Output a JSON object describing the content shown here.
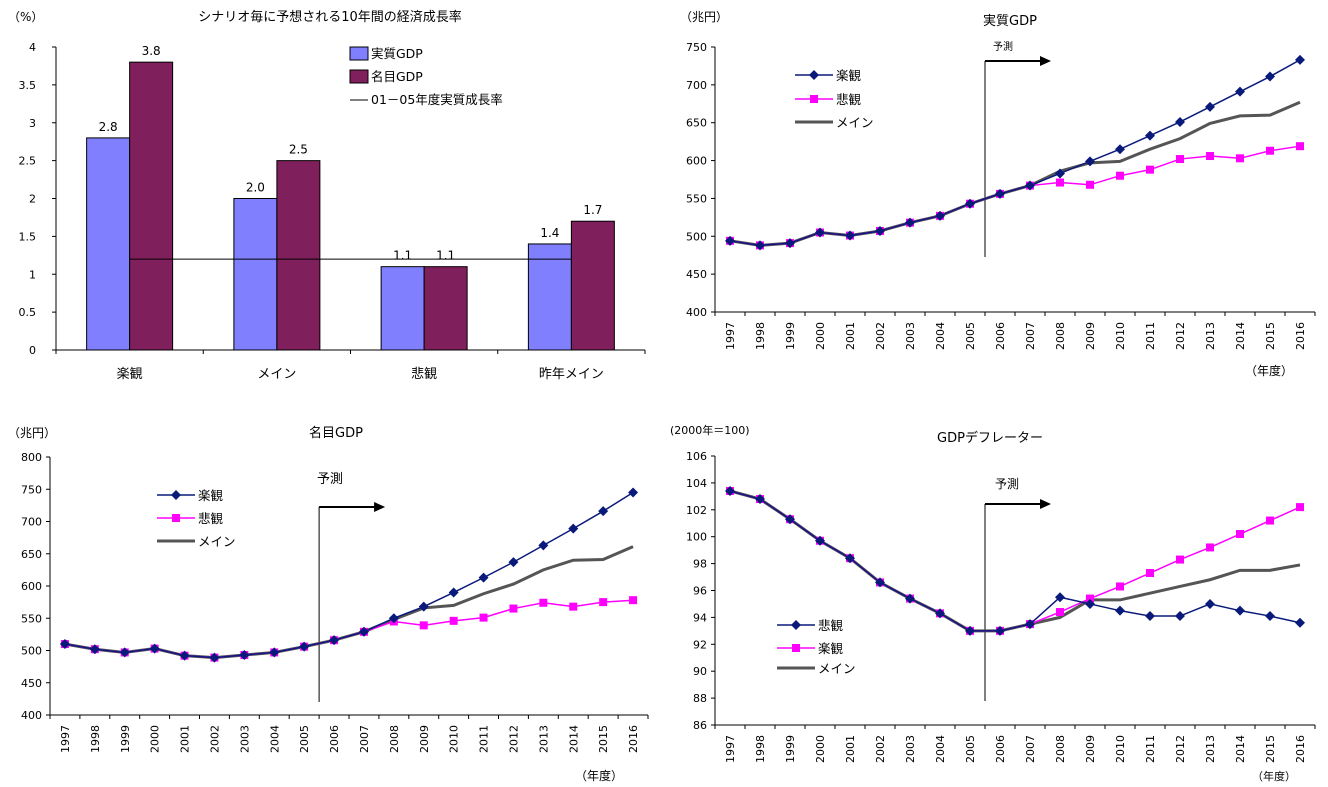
{
  "chart_data": [
    {
      "id": "growth",
      "type": "bar",
      "title": "シナリオ毎に予想される10年間の経済成長率",
      "unit_label": "（%）",
      "categories": [
        "楽観",
        "メイン",
        "悲観",
        "昨年メイン"
      ],
      "ylim": [
        0,
        4
      ],
      "yticks": [
        "0",
        "0.5",
        "1",
        "1.5",
        "2",
        "2.5",
        "3",
        "3.5",
        "4"
      ],
      "series": [
        {
          "name": "実質GDP",
          "values": [
            2.8,
            2.0,
            1.1,
            1.4
          ],
          "labels": [
            "2.8",
            "2.0",
            "1.1",
            "1.4"
          ],
          "color": "#8080ff"
        },
        {
          "name": "名目GDP",
          "values": [
            3.8,
            2.5,
            1.1,
            1.7
          ],
          "labels": [
            "3.8",
            "2.5",
            "1.1",
            "1.7"
          ],
          "color": "#7f1f5b"
        }
      ],
      "reference_line": {
        "name": "01－05年度実質成長率",
        "value": 1.2
      },
      "grid": false,
      "legend": "top-right"
    },
    {
      "id": "real",
      "type": "line",
      "title": "実質GDP",
      "unit_label": "（兆円）",
      "xlabel": "（年度）",
      "x": [
        "1997",
        "1998",
        "1999",
        "2000",
        "2001",
        "2002",
        "2003",
        "2004",
        "2005",
        "2006",
        "2007",
        "2008",
        "2009",
        "2010",
        "2011",
        "2012",
        "2013",
        "2014",
        "2015",
        "2016"
      ],
      "ylim": [
        400,
        750
      ],
      "yticks": [
        "400",
        "450",
        "500",
        "550",
        "600",
        "650",
        "700",
        "750"
      ],
      "forecast_start": "2006",
      "forecast_label": "予測",
      "series": [
        {
          "name": "楽観",
          "marker": "diamond",
          "color": "#0a1a7a",
          "values": [
            494,
            488,
            491,
            505,
            501,
            507,
            518,
            527,
            543,
            556,
            567,
            583,
            599,
            615,
            633,
            651,
            671,
            691,
            711,
            733
          ]
        },
        {
          "name": "悲観",
          "marker": "square",
          "color": "#ff00ff",
          "values": [
            494,
            488,
            491,
            505,
            501,
            507,
            518,
            527,
            543,
            556,
            567,
            571,
            568,
            580,
            588,
            602,
            606,
            603,
            613,
            619
          ]
        },
        {
          "name": "メイン",
          "marker": "none",
          "color": "#555555",
          "values": [
            494,
            488,
            491,
            505,
            501,
            507,
            518,
            527,
            543,
            556,
            567,
            586,
            597,
            599,
            615,
            629,
            649,
            659,
            660,
            677
          ]
        }
      ],
      "grid": false,
      "legend": "top-left"
    },
    {
      "id": "nominal",
      "type": "line",
      "title": "名目GDP",
      "unit_label": "（兆円）",
      "xlabel": "（年度）",
      "x": [
        "1997",
        "1998",
        "1999",
        "2000",
        "2001",
        "2002",
        "2003",
        "2004",
        "2005",
        "2006",
        "2007",
        "2008",
        "2009",
        "2010",
        "2011",
        "2012",
        "2013",
        "2014",
        "2015",
        "2016"
      ],
      "ylim": [
        400,
        800
      ],
      "yticks": [
        "400",
        "450",
        "500",
        "550",
        "600",
        "650",
        "700",
        "750",
        "800"
      ],
      "forecast_start": "2006",
      "forecast_label": "予測",
      "series": [
        {
          "name": "楽観",
          "marker": "diamond",
          "color": "#0a1a7a",
          "values": [
            510,
            502,
            497,
            503,
            492,
            489,
            493,
            497,
            506,
            516,
            529,
            550,
            568,
            590,
            613,
            637,
            663,
            689,
            716,
            745
          ]
        },
        {
          "name": "悲観",
          "marker": "square",
          "color": "#ff00ff",
          "values": [
            510,
            502,
            497,
            503,
            492,
            489,
            493,
            497,
            506,
            516,
            529,
            545,
            539,
            546,
            551,
            565,
            574,
            568,
            575,
            578
          ]
        },
        {
          "name": "メイン",
          "marker": "none",
          "color": "#555555",
          "values": [
            510,
            502,
            497,
            503,
            492,
            489,
            493,
            497,
            506,
            516,
            529,
            548,
            566,
            570,
            588,
            603,
            625,
            640,
            641,
            661
          ]
        }
      ],
      "grid": false,
      "legend": "top-left"
    },
    {
      "id": "deflator",
      "type": "line",
      "title": "GDPデフレーター",
      "unit_label": "(2000年＝100)",
      "xlabel": "（年度）",
      "x": [
        "1997",
        "1998",
        "1999",
        "2000",
        "2001",
        "2002",
        "2003",
        "2004",
        "2005",
        "2006",
        "2007",
        "2008",
        "2009",
        "2010",
        "2011",
        "2012",
        "2013",
        "2014",
        "2015",
        "2016"
      ],
      "ylim": [
        86,
        106
      ],
      "yticks": [
        "86",
        "88",
        "90",
        "92",
        "94",
        "96",
        "98",
        "100",
        "102",
        "104",
        "106"
      ],
      "forecast_start": "2006",
      "forecast_label": "予測",
      "series": [
        {
          "name": "悲観",
          "marker": "diamond",
          "color": "#0a1a7a",
          "values": [
            103.4,
            102.8,
            101.3,
            99.7,
            98.4,
            96.6,
            95.4,
            94.3,
            93.0,
            93.0,
            93.5,
            95.5,
            95.0,
            94.5,
            94.1,
            94.1,
            95.0,
            94.5,
            94.1,
            93.6
          ]
        },
        {
          "name": "楽観",
          "marker": "square",
          "color": "#ff00ff",
          "values": [
            103.4,
            102.8,
            101.3,
            99.7,
            98.4,
            96.6,
            95.4,
            94.3,
            93.0,
            93.0,
            93.5,
            94.4,
            95.4,
            96.3,
            97.3,
            98.3,
            99.2,
            100.2,
            101.2,
            102.2
          ]
        },
        {
          "name": "メイン",
          "marker": "none",
          "color": "#555555",
          "values": [
            103.4,
            102.8,
            101.3,
            99.7,
            98.4,
            96.6,
            95.4,
            94.3,
            93.0,
            93.0,
            93.5,
            94.0,
            95.3,
            95.3,
            95.8,
            96.3,
            96.8,
            97.5,
            97.5,
            97.9
          ]
        }
      ],
      "grid": false,
      "legend": "bottom-left"
    }
  ]
}
